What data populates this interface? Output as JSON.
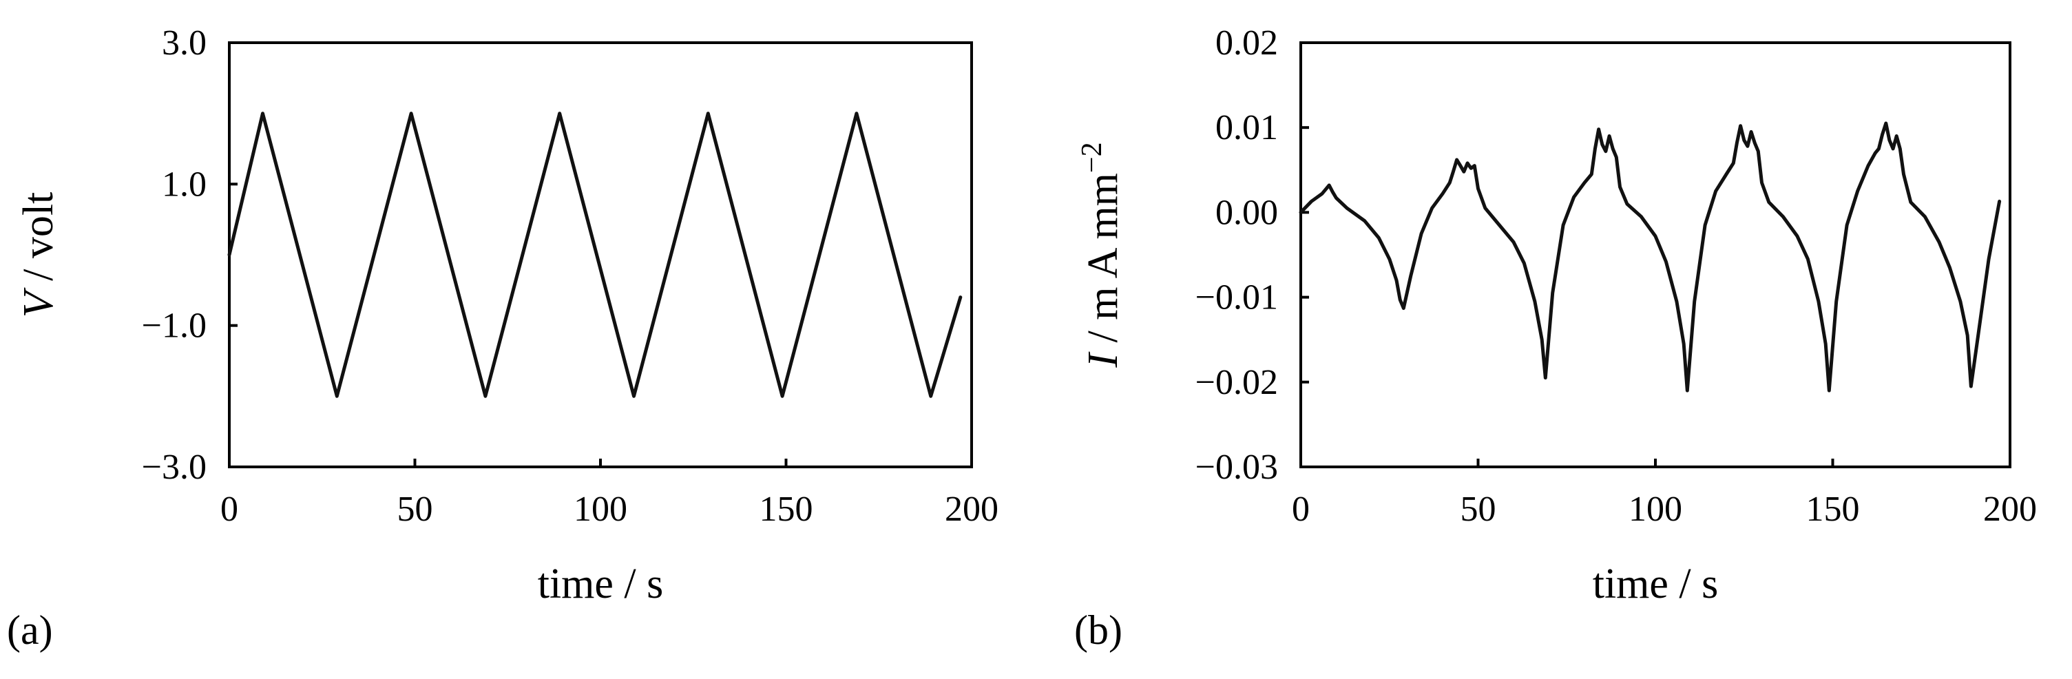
{
  "panels": [
    {
      "label": "(a)",
      "ylabel_var": "V",
      "ylabel_rest": " / volt",
      "xlabel": "time / s",
      "xticks": [
        "0",
        "50",
        "100",
        "150",
        "200"
      ],
      "yticks": [
        "3.0",
        "1.0",
        "-1.0",
        "-3.0"
      ]
    },
    {
      "label": "(b)",
      "ylabel_var": "I",
      "ylabel_rest": " / m A mm",
      "ylabel_sup": "−2",
      "xlabel": "time / s",
      "xticks": [
        "0",
        "50",
        "100",
        "150",
        "200"
      ],
      "yticks": [
        "0.02",
        "0.01",
        "0.00",
        "-0.01",
        "-0.02",
        "-0.03"
      ]
    }
  ],
  "chart_data": [
    {
      "type": "line",
      "xlabel": "time / s",
      "ylabel": "V / volt",
      "xlim": [
        0,
        200
      ],
      "ylim": [
        -3.0,
        3.0
      ],
      "grid": false,
      "series": [
        {
          "x": [
            0,
            9,
            29,
            49,
            69,
            89,
            109,
            129,
            149,
            169,
            189,
            197
          ],
          "y": [
            0.0,
            2.0,
            -2.0,
            2.0,
            -2.0,
            2.0,
            -2.0,
            2.0,
            -2.0,
            2.0,
            -2.0,
            -0.6
          ]
        }
      ]
    },
    {
      "type": "line",
      "xlabel": "time / s",
      "ylabel": "I / m A mm^-2",
      "xlim": [
        0,
        200
      ],
      "ylim": [
        -0.03,
        0.02
      ],
      "grid": false,
      "series": [
        {
          "x": [
            0,
            3,
            6,
            8,
            9,
            10,
            13,
            18,
            22,
            25,
            27,
            28,
            29,
            31,
            34,
            37,
            40,
            42,
            43,
            44,
            45,
            46,
            47,
            48,
            49,
            50,
            52,
            56,
            60,
            63,
            66,
            68,
            69,
            71,
            74,
            77,
            80,
            82,
            83,
            84,
            85,
            86,
            87,
            88,
            89,
            90,
            92,
            96,
            100,
            103,
            106,
            108,
            109,
            111,
            114,
            117,
            120,
            122,
            123,
            124,
            125,
            126,
            127,
            128,
            129,
            130,
            132,
            136,
            140,
            143,
            146,
            148,
            149,
            151,
            154,
            157,
            160,
            162,
            163,
            164,
            165,
            166,
            167,
            168,
            169,
            170,
            172,
            176,
            180,
            183,
            186,
            188,
            189,
            191,
            194,
            197
          ],
          "y": [
            0.0,
            0.0013,
            0.0022,
            0.0032,
            0.0024,
            0.0017,
            0.0005,
            -0.001,
            -0.003,
            -0.0055,
            -0.008,
            -0.0103,
            -0.0113,
            -0.0075,
            -0.0025,
            0.0005,
            0.0022,
            0.0035,
            0.0048,
            0.0062,
            0.0055,
            0.0048,
            0.0058,
            0.0052,
            0.0055,
            0.0028,
            0.0005,
            -0.0015,
            -0.0035,
            -0.006,
            -0.0105,
            -0.015,
            -0.0195,
            -0.0095,
            -0.0015,
            0.0018,
            0.0035,
            0.0045,
            0.0075,
            0.0098,
            0.008,
            0.0072,
            0.009,
            0.0075,
            0.0065,
            0.003,
            0.001,
            -0.0005,
            -0.0028,
            -0.0058,
            -0.0105,
            -0.0155,
            -0.021,
            -0.0105,
            -0.0015,
            0.0025,
            0.0045,
            0.0058,
            0.0082,
            0.0102,
            0.0085,
            0.0078,
            0.0095,
            0.0082,
            0.0072,
            0.0035,
            0.0012,
            -0.0005,
            -0.0028,
            -0.0055,
            -0.0105,
            -0.0155,
            -0.021,
            -0.0105,
            -0.0015,
            0.0025,
            0.0055,
            0.007,
            0.0075,
            0.0092,
            0.0105,
            0.0085,
            0.0075,
            0.009,
            0.0075,
            0.0045,
            0.0012,
            -0.0005,
            -0.0035,
            -0.0065,
            -0.0105,
            -0.0145,
            -0.0205,
            -0.0145,
            -0.0055,
            0.0013
          ]
        }
      ]
    }
  ]
}
